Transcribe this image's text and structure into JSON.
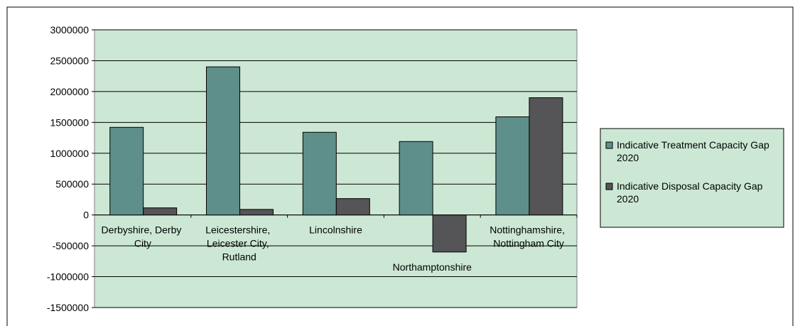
{
  "chart_data": {
    "type": "bar",
    "categories": [
      "Derbyshire, Derby City",
      "Leicestershire, Leicester City, Rutland",
      "Lincolnshire",
      "Northamptonshire",
      "Nottinghamshire, Nottingham City"
    ],
    "series": [
      {
        "name": "Indicative Treatment Capacity Gap 2020",
        "color": "#5f8f8a",
        "values": [
          1420000,
          2400000,
          1340000,
          1190000,
          1590000
        ]
      },
      {
        "name": "Indicative Disposal Capacity Gap 2020",
        "color": "#555558",
        "values": [
          115000,
          90000,
          265000,
          -600000,
          1900000
        ]
      }
    ],
    "ylim": [
      -1500000,
      3000000
    ],
    "yticks": [
      -1500000,
      -1000000,
      -500000,
      0,
      500000,
      1000000,
      1500000,
      2000000,
      2500000,
      3000000
    ],
    "grid": true,
    "legend": "right"
  }
}
